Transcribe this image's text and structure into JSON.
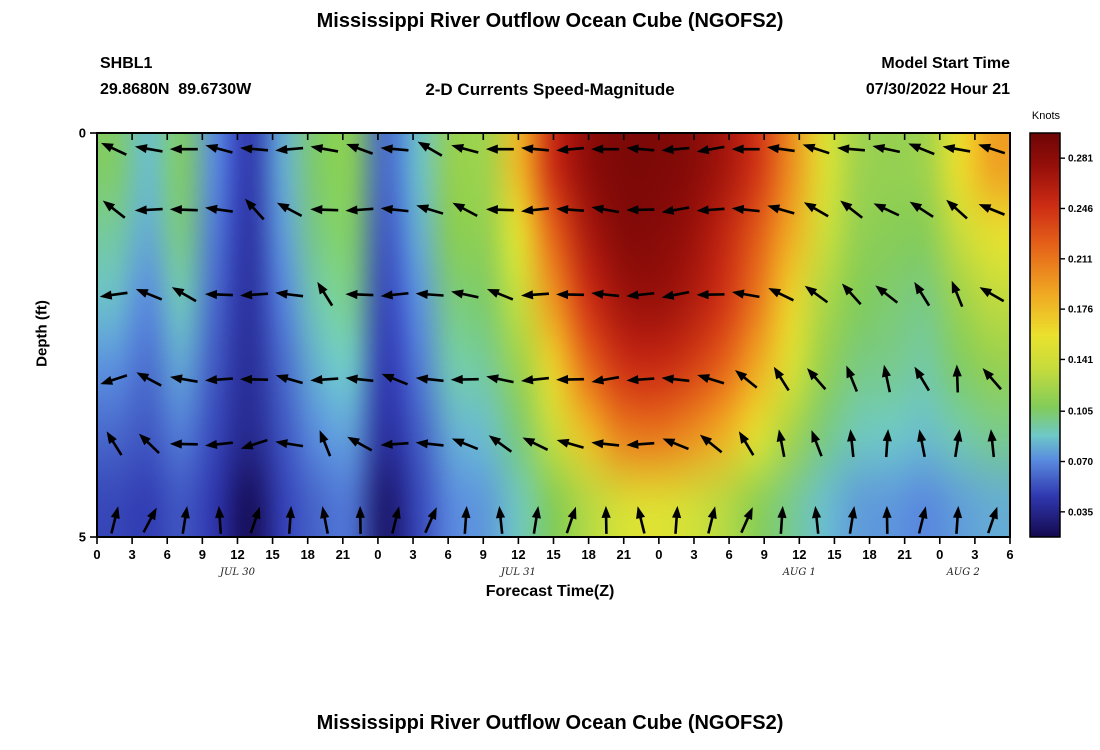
{
  "top_panel": {
    "title": "Mississippi River Outflow Ocean Cube (NGOFS2)",
    "station": "SHBL1",
    "coordinates": "29.8680N  89.6730W",
    "subtitle": "2-D Currents Speed-Magnitude",
    "model_start_label": "Model Start Time",
    "model_start_value": "07/30/2022 Hour 21",
    "xlabel": "Forecast Time(Z)",
    "ylabel": "Depth (ft)",
    "colorbar_title": "Knots"
  },
  "bottom_panel_title": "Mississippi River Outflow Ocean Cube (NGOFS2)",
  "chart_data": {
    "type": "heatmap",
    "title": "Mississippi River Outflow Ocean Cube (NGOFS2)",
    "subtitle": "2-D Currents Speed-Magnitude",
    "station": "SHBL1",
    "coordinates": "29.8680N  89.6730W",
    "model_start": "07/30/2022 Hour 21",
    "xlabel": "Forecast Time(Z)",
    "ylabel": "Depth (ft)",
    "units": "Knots",
    "x_range_hours": [
      0,
      78
    ],
    "y_range_ft": [
      0,
      5
    ],
    "x_tick_hours": [
      0,
      3,
      6,
      9,
      12,
      15,
      18,
      21,
      24,
      27,
      30,
      33,
      36,
      39,
      42,
      45,
      48,
      51,
      54,
      57,
      60,
      63,
      66,
      69,
      72,
      75,
      78
    ],
    "x_tick_labels": [
      "0",
      "3",
      "6",
      "9",
      "12",
      "15",
      "18",
      "21",
      "0",
      "3",
      "6",
      "9",
      "12",
      "15",
      "18",
      "21",
      "0",
      "3",
      "6",
      "9",
      "12",
      "15",
      "18",
      "21",
      "0",
      "3",
      "6"
    ],
    "y_ticks": [
      {
        "value": 0,
        "label": "0"
      },
      {
        "value": 5,
        "label": "5"
      }
    ],
    "date_labels": [
      {
        "label": "JUL 30",
        "hour": 12
      },
      {
        "label": "JUL 31",
        "hour": 36
      },
      {
        "label": "AUG 1",
        "hour": 60
      },
      {
        "label": "AUG 2",
        "hour": 74
      }
    ],
    "depth_rows_ft": [
      0,
      1,
      2,
      3,
      4,
      5
    ],
    "values_knots": [
      [
        0.105,
        0.085,
        0.105,
        0.07,
        0.045,
        0.08,
        0.105,
        0.11,
        0.06,
        0.085,
        0.115,
        0.12,
        0.18,
        0.25,
        0.28,
        0.29,
        0.29,
        0.285,
        0.27,
        0.245,
        0.2,
        0.15,
        0.12,
        0.115,
        0.12,
        0.16,
        0.19
      ],
      [
        0.095,
        0.08,
        0.1,
        0.065,
        0.042,
        0.075,
        0.1,
        0.105,
        0.055,
        0.08,
        0.11,
        0.115,
        0.155,
        0.22,
        0.265,
        0.285,
        0.285,
        0.275,
        0.255,
        0.225,
        0.185,
        0.14,
        0.115,
        0.11,
        0.11,
        0.135,
        0.155
      ],
      [
        0.085,
        0.07,
        0.09,
        0.06,
        0.04,
        0.068,
        0.092,
        0.098,
        0.05,
        0.072,
        0.1,
        0.105,
        0.135,
        0.195,
        0.245,
        0.27,
        0.275,
        0.265,
        0.245,
        0.21,
        0.165,
        0.125,
        0.108,
        0.103,
        0.1,
        0.118,
        0.132
      ],
      [
        0.072,
        0.062,
        0.078,
        0.055,
        0.038,
        0.06,
        0.082,
        0.088,
        0.046,
        0.065,
        0.092,
        0.096,
        0.118,
        0.165,
        0.215,
        0.245,
        0.25,
        0.24,
        0.22,
        0.185,
        0.148,
        0.115,
        0.1,
        0.098,
        0.094,
        0.105,
        0.115
      ],
      [
        0.06,
        0.055,
        0.066,
        0.05,
        0.035,
        0.054,
        0.072,
        0.076,
        0.04,
        0.056,
        0.08,
        0.085,
        0.102,
        0.135,
        0.175,
        0.205,
        0.21,
        0.2,
        0.182,
        0.152,
        0.122,
        0.1,
        0.09,
        0.088,
        0.085,
        0.092,
        0.098
      ],
      [
        0.05,
        0.047,
        0.055,
        0.044,
        0.02,
        0.048,
        0.06,
        0.064,
        0.026,
        0.05,
        0.07,
        0.075,
        0.09,
        0.108,
        0.128,
        0.145,
        0.15,
        0.143,
        0.13,
        0.112,
        0.098,
        0.085,
        0.076,
        0.074,
        0.07,
        0.076,
        0.08
      ]
    ],
    "colorbar": {
      "title": "Knots",
      "vmin": 0.0175,
      "vmax": 0.2985,
      "tick_values": [
        0.281,
        0.246,
        0.211,
        0.176,
        0.141,
        0.105,
        0.07,
        0.035
      ],
      "tick_labels": [
        "0.281",
        "0.246",
        "0.211",
        "0.176",
        "0.141",
        "0.105",
        "0.070",
        "0.035"
      ]
    },
    "colormap_stops": [
      [
        0.0,
        "#140a50"
      ],
      [
        0.1,
        "#3038b0"
      ],
      [
        0.19,
        "#5a8ce0"
      ],
      [
        0.25,
        "#6ec8c8"
      ],
      [
        0.32,
        "#82cc5a"
      ],
      [
        0.42,
        "#c8dc3c"
      ],
      [
        0.5,
        "#ebe12d"
      ],
      [
        0.6,
        "#f0aa23"
      ],
      [
        0.72,
        "#e66419"
      ],
      [
        0.82,
        "#cd2d14"
      ],
      [
        0.92,
        "#960f0a"
      ],
      [
        1.0,
        "#6e0505"
      ]
    ],
    "arrows": {
      "columns_hours": [
        1.5,
        4.5,
        7.5,
        10.5,
        13.5,
        16.5,
        19.5,
        22.5,
        25.5,
        28.5,
        31.5,
        34.5,
        37.5,
        40.5,
        43.5,
        46.5,
        49.5,
        52.5,
        55.5,
        58.5,
        61.5,
        64.5,
        67.5,
        70.5,
        73.5,
        76.5
      ],
      "row_depths_ft": [
        0.2,
        0.95,
        2.0,
        3.05,
        3.85,
        4.8
      ],
      "angles_deg": [
        [
          155,
          170,
          180,
          165,
          175,
          185,
          170,
          160,
          175,
          150,
          165,
          180,
          175,
          185,
          180,
          175,
          185,
          190,
          180,
          172,
          162,
          175,
          168,
          158,
          170,
          162
        ],
        [
          142,
          183,
          178,
          172,
          132,
          152,
          178,
          184,
          174,
          163,
          152,
          178,
          186,
          176,
          170,
          181,
          190,
          184,
          174,
          164,
          150,
          142,
          155,
          147,
          138,
          158
        ],
        [
          188,
          158,
          150,
          178,
          184,
          173,
          122,
          178,
          186,
          176,
          168,
          158,
          184,
          179,
          174,
          186,
          191,
          181,
          170,
          154,
          144,
          132,
          142,
          122,
          112,
          150
        ],
        [
          198,
          152,
          170,
          184,
          179,
          164,
          184,
          174,
          158,
          174,
          181,
          168,
          186,
          181,
          190,
          184,
          174,
          163,
          141,
          122,
          131,
          112,
          102,
          121,
          92,
          131
        ],
        [
          122,
          136,
          179,
          186,
          198,
          171,
          112,
          151,
          184,
          174,
          158,
          144,
          154,
          164,
          174,
          184,
          158,
          141,
          121,
          101,
          111,
          96,
          86,
          101,
          81,
          96
        ],
        [
          76,
          62,
          81,
          94,
          71,
          86,
          101,
          91,
          76,
          66,
          86,
          96,
          81,
          71,
          91,
          104,
          86,
          76,
          66,
          86,
          96,
          81,
          91,
          76,
          86,
          71
        ]
      ]
    }
  }
}
